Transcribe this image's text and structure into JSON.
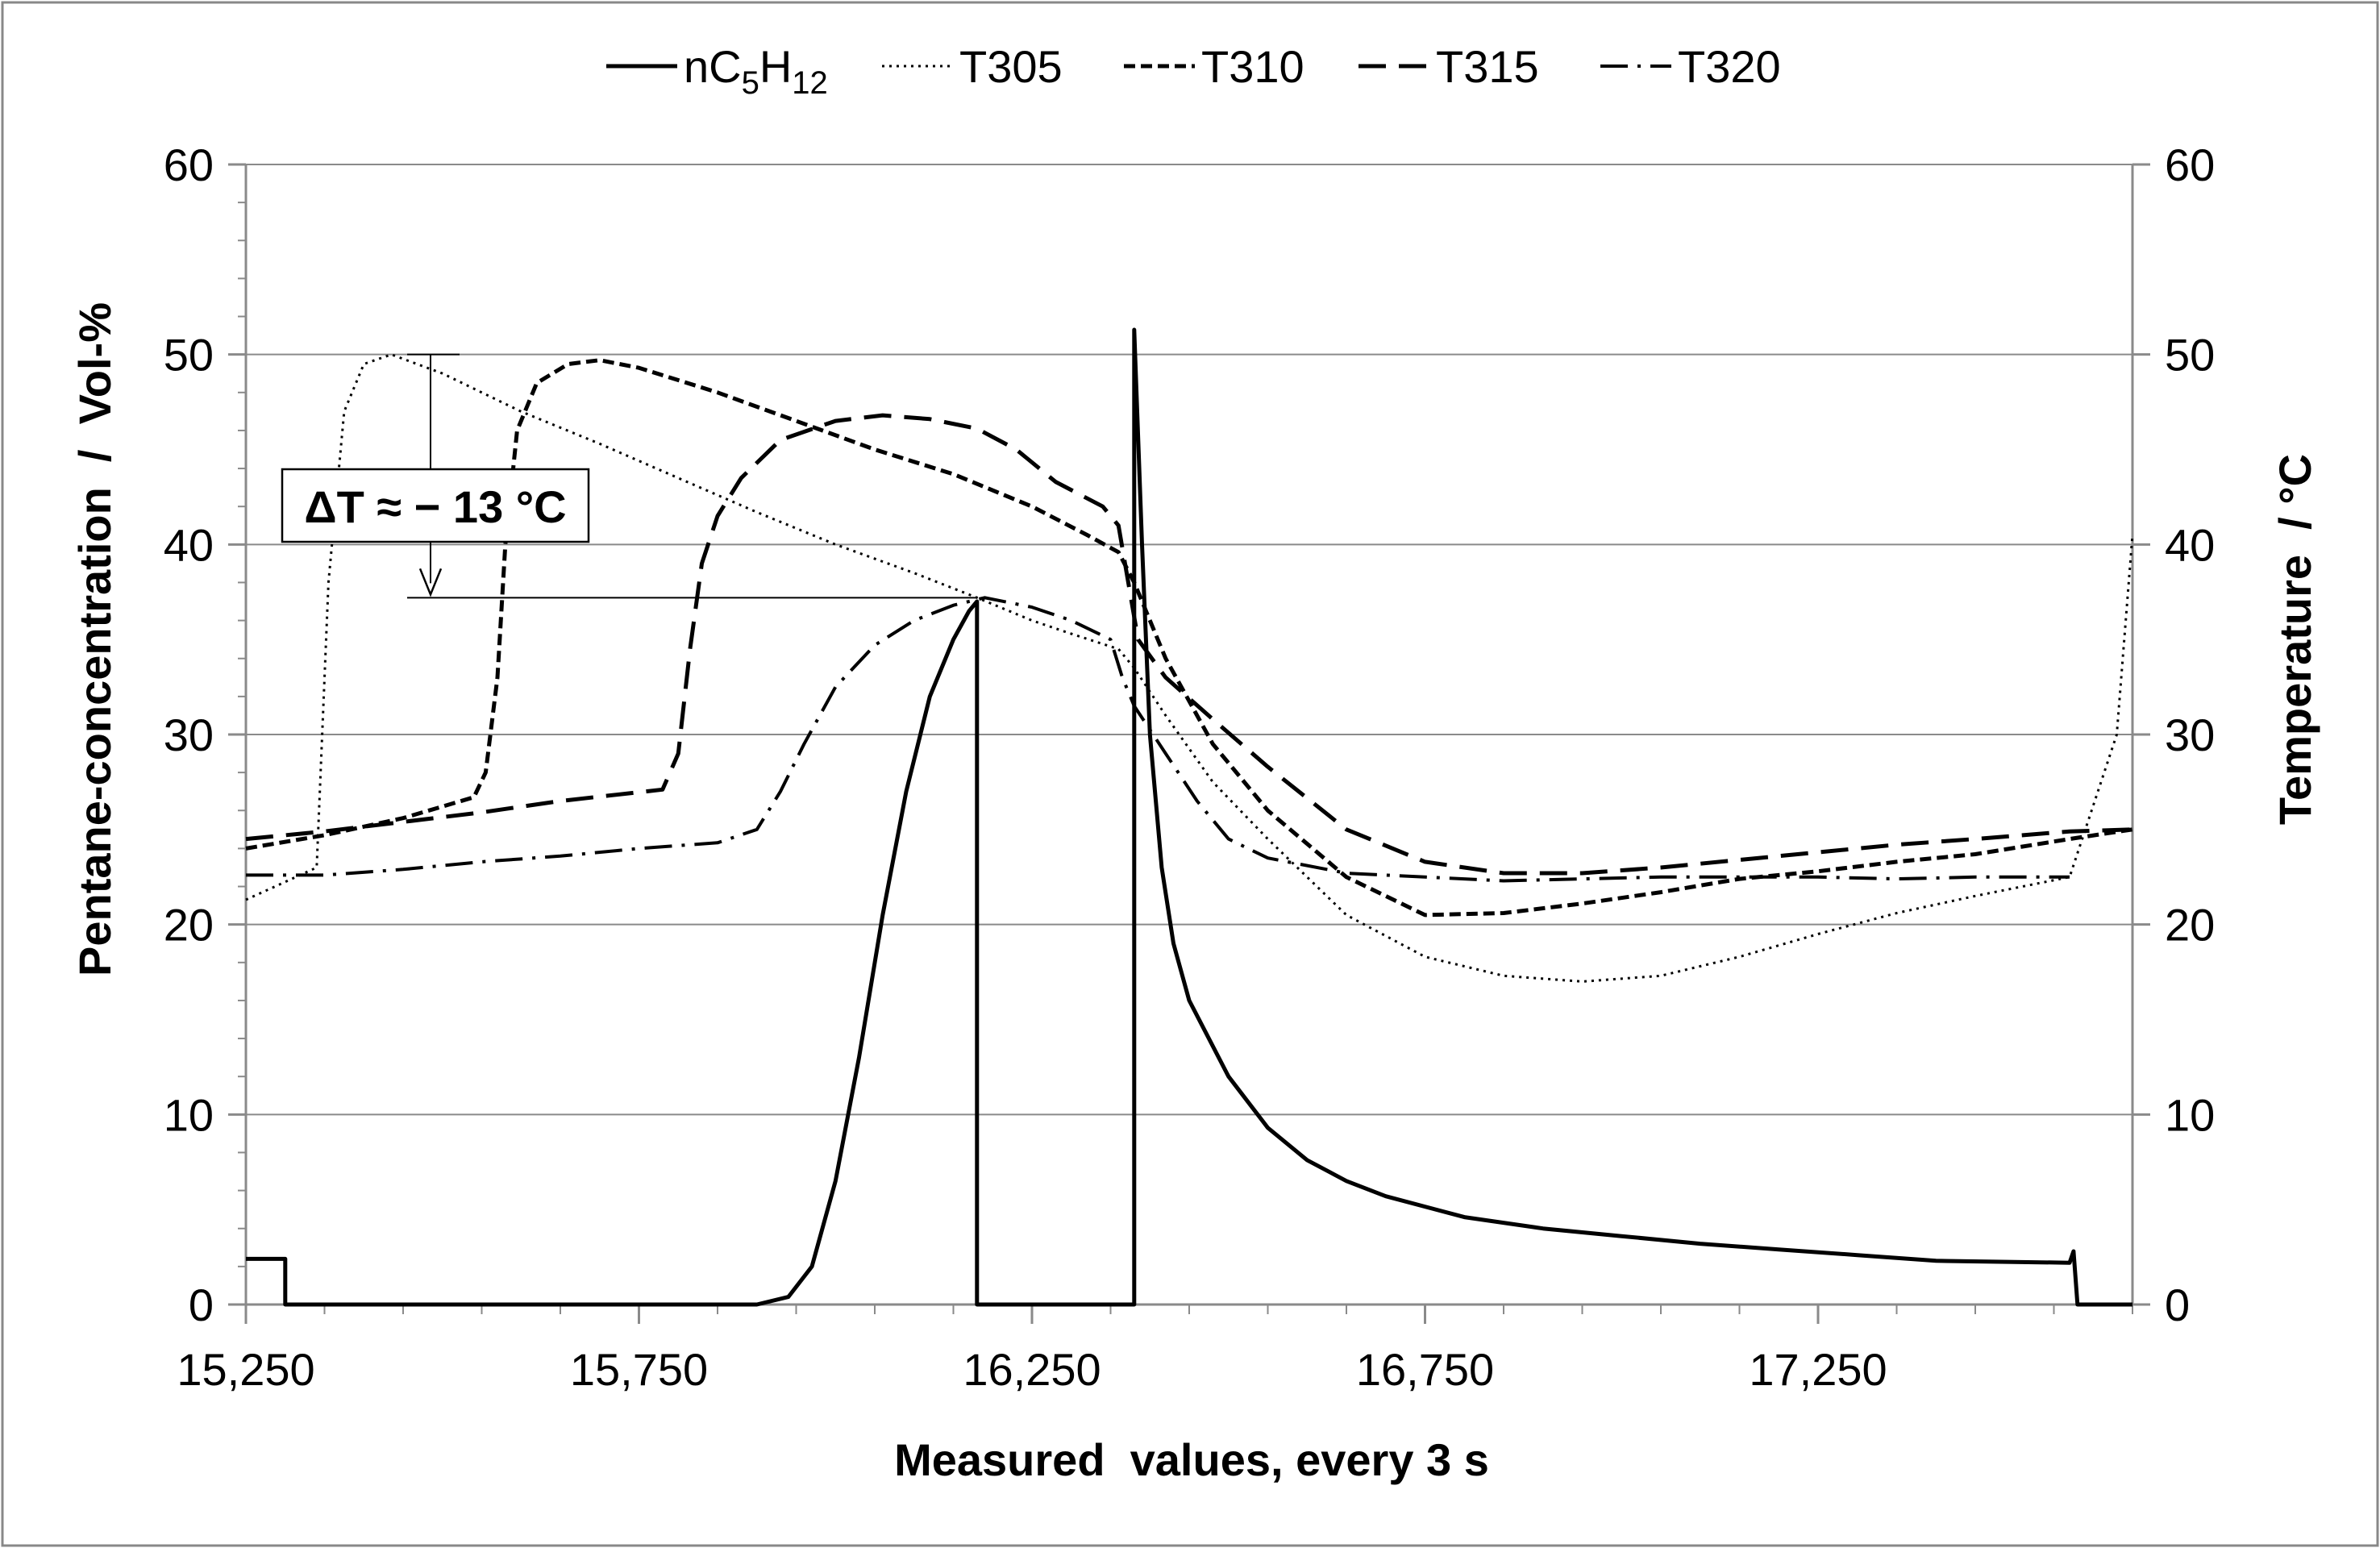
{
  "chart_data": {
    "type": "line",
    "title": "",
    "xlabel": "Measured  values, every 3 s",
    "ylabel_left": "Pentane-concentration  /  Vol-%",
    "ylabel_right": "Temperature  / °C",
    "xlim": [
      15250,
      17650
    ],
    "ylim_left": [
      0,
      60
    ],
    "ylim_right": [
      0,
      60
    ],
    "x_ticks": [
      15250,
      15750,
      16250,
      16750,
      17250
    ],
    "x_tick_labels": [
      "15,250",
      "15,750",
      "16,250",
      "16,750",
      "17,250"
    ],
    "y_ticks": [
      0,
      10,
      20,
      30,
      40,
      50,
      60
    ],
    "y_tick_labels": [
      "0",
      "10",
      "20",
      "30",
      "40",
      "50",
      "60"
    ],
    "grid": "horizontal",
    "legend_position": "top",
    "annotation": {
      "text": "ΔT ≈ − 13 °C",
      "from_value": 50,
      "to_value": 37.2
    },
    "series": [
      {
        "name": "nC5H12",
        "legend_base": "nC",
        "legend_sub1": "5",
        "legend_mid": "H",
        "legend_sub2": "12",
        "dash": "solid",
        "width": 5,
        "points": [
          [
            15250,
            2.4
          ],
          [
            15300,
            2.4
          ],
          [
            15300,
            0
          ],
          [
            15500,
            0
          ],
          [
            15700,
            0
          ],
          [
            15900,
            0
          ],
          [
            15940,
            0.4
          ],
          [
            15970,
            2
          ],
          [
            16000,
            6.5
          ],
          [
            16030,
            13
          ],
          [
            16060,
            20.5
          ],
          [
            16090,
            27
          ],
          [
            16120,
            32
          ],
          [
            16150,
            35
          ],
          [
            16170,
            36.5
          ],
          [
            16180,
            37
          ],
          [
            16180,
            0
          ],
          [
            16380,
            0
          ],
          [
            16380,
            51.3
          ],
          [
            16390,
            40
          ],
          [
            16400,
            30
          ],
          [
            16415,
            23
          ],
          [
            16430,
            19
          ],
          [
            16450,
            16
          ],
          [
            16500,
            12
          ],
          [
            16550,
            9.3
          ],
          [
            16600,
            7.6
          ],
          [
            16650,
            6.5
          ],
          [
            16700,
            5.7
          ],
          [
            16800,
            4.6
          ],
          [
            16900,
            4.0
          ],
          [
            17000,
            3.6
          ],
          [
            17100,
            3.2
          ],
          [
            17200,
            2.9
          ],
          [
            17300,
            2.6
          ],
          [
            17400,
            2.3
          ],
          [
            17570,
            2.2
          ],
          [
            17575,
            2.8
          ],
          [
            17580,
            0
          ],
          [
            17650,
            0
          ]
        ]
      },
      {
        "name": "T305",
        "dash": "dotted",
        "width": 3,
        "points": [
          [
            15250,
            21.3
          ],
          [
            15340,
            23
          ],
          [
            15355,
            38
          ],
          [
            15375,
            47
          ],
          [
            15400,
            49.5
          ],
          [
            15435,
            50
          ],
          [
            15500,
            49
          ],
          [
            15600,
            47
          ],
          [
            15700,
            45.3
          ],
          [
            15800,
            43.5
          ],
          [
            15900,
            41.7
          ],
          [
            16000,
            40
          ],
          [
            16100,
            38.5
          ],
          [
            16180,
            37.2
          ],
          [
            16250,
            36
          ],
          [
            16300,
            35.3
          ],
          [
            16360,
            34.5
          ],
          [
            16380,
            33.5
          ],
          [
            16420,
            31
          ],
          [
            16480,
            27.5
          ],
          [
            16550,
            24.5
          ],
          [
            16650,
            20.5
          ],
          [
            16750,
            18.3
          ],
          [
            16850,
            17.3
          ],
          [
            16950,
            17
          ],
          [
            17050,
            17.3
          ],
          [
            17150,
            18.3
          ],
          [
            17250,
            19.5
          ],
          [
            17350,
            20.6
          ],
          [
            17450,
            21.5
          ],
          [
            17570,
            22.5
          ],
          [
            17630,
            30
          ],
          [
            17650,
            40.5
          ]
        ]
      },
      {
        "name": "T310",
        "dash": "short-dash",
        "width": 5,
        "points": [
          [
            15250,
            24
          ],
          [
            15350,
            24.7
          ],
          [
            15450,
            25.6
          ],
          [
            15540,
            26.7
          ],
          [
            15555,
            28
          ],
          [
            15570,
            33
          ],
          [
            15580,
            40
          ],
          [
            15595,
            46
          ],
          [
            15620,
            48.5
          ],
          [
            15660,
            49.5
          ],
          [
            15700,
            49.7
          ],
          [
            15750,
            49.3
          ],
          [
            15850,
            48
          ],
          [
            15950,
            46.5
          ],
          [
            16050,
            45
          ],
          [
            16150,
            43.7
          ],
          [
            16250,
            42
          ],
          [
            16320,
            40.5
          ],
          [
            16360,
            39.6
          ],
          [
            16380,
            38
          ],
          [
            16420,
            34
          ],
          [
            16480,
            29.5
          ],
          [
            16550,
            26
          ],
          [
            16650,
            22.5
          ],
          [
            16750,
            20.5
          ],
          [
            16850,
            20.6
          ],
          [
            16950,
            21.1
          ],
          [
            17050,
            21.7
          ],
          [
            17150,
            22.4
          ],
          [
            17250,
            22.8
          ],
          [
            17350,
            23.3
          ],
          [
            17450,
            23.7
          ],
          [
            17570,
            24.5
          ],
          [
            17650,
            25
          ]
        ]
      },
      {
        "name": "T315",
        "dash": "long-dash",
        "width": 5,
        "points": [
          [
            15250,
            24.5
          ],
          [
            15350,
            24.9
          ],
          [
            15450,
            25.4
          ],
          [
            15550,
            25.9
          ],
          [
            15650,
            26.5
          ],
          [
            15780,
            27.1
          ],
          [
            15800,
            29
          ],
          [
            15815,
            34.5
          ],
          [
            15830,
            39
          ],
          [
            15850,
            41.5
          ],
          [
            15880,
            43.5
          ],
          [
            15930,
            45.5
          ],
          [
            16000,
            46.5
          ],
          [
            16060,
            46.8
          ],
          [
            16120,
            46.6
          ],
          [
            16180,
            46.1
          ],
          [
            16230,
            45
          ],
          [
            16280,
            43.3
          ],
          [
            16340,
            42
          ],
          [
            16360,
            41
          ],
          [
            16385,
            35
          ],
          [
            16420,
            33
          ],
          [
            16480,
            30.8
          ],
          [
            16550,
            28.3
          ],
          [
            16650,
            25
          ],
          [
            16750,
            23.3
          ],
          [
            16850,
            22.7
          ],
          [
            16950,
            22.7
          ],
          [
            17050,
            23
          ],
          [
            17150,
            23.4
          ],
          [
            17250,
            23.8
          ],
          [
            17350,
            24.2
          ],
          [
            17450,
            24.5
          ],
          [
            17570,
            24.9
          ],
          [
            17650,
            25
          ]
        ]
      },
      {
        "name": "T320",
        "dash": "dash-dot",
        "width": 4,
        "points": [
          [
            15250,
            22.6
          ],
          [
            15350,
            22.6
          ],
          [
            15450,
            22.9
          ],
          [
            15550,
            23.3
          ],
          [
            15650,
            23.6
          ],
          [
            15750,
            24
          ],
          [
            15850,
            24.3
          ],
          [
            15900,
            25
          ],
          [
            15930,
            27
          ],
          [
            15960,
            29.5
          ],
          [
            16000,
            32.5
          ],
          [
            16050,
            34.7
          ],
          [
            16100,
            36
          ],
          [
            16150,
            36.8
          ],
          [
            16190,
            37.2
          ],
          [
            16250,
            36.7
          ],
          [
            16300,
            36
          ],
          [
            16350,
            35
          ],
          [
            16365,
            33
          ],
          [
            16380,
            31.5
          ],
          [
            16420,
            29
          ],
          [
            16460,
            26.5
          ],
          [
            16500,
            24.5
          ],
          [
            16550,
            23.5
          ],
          [
            16650,
            22.7
          ],
          [
            16750,
            22.5
          ],
          [
            16850,
            22.3
          ],
          [
            16950,
            22.4
          ],
          [
            17050,
            22.5
          ],
          [
            17150,
            22.5
          ],
          [
            17250,
            22.5
          ],
          [
            17350,
            22.4
          ],
          [
            17450,
            22.5
          ],
          [
            17570,
            22.5
          ]
        ]
      }
    ]
  }
}
